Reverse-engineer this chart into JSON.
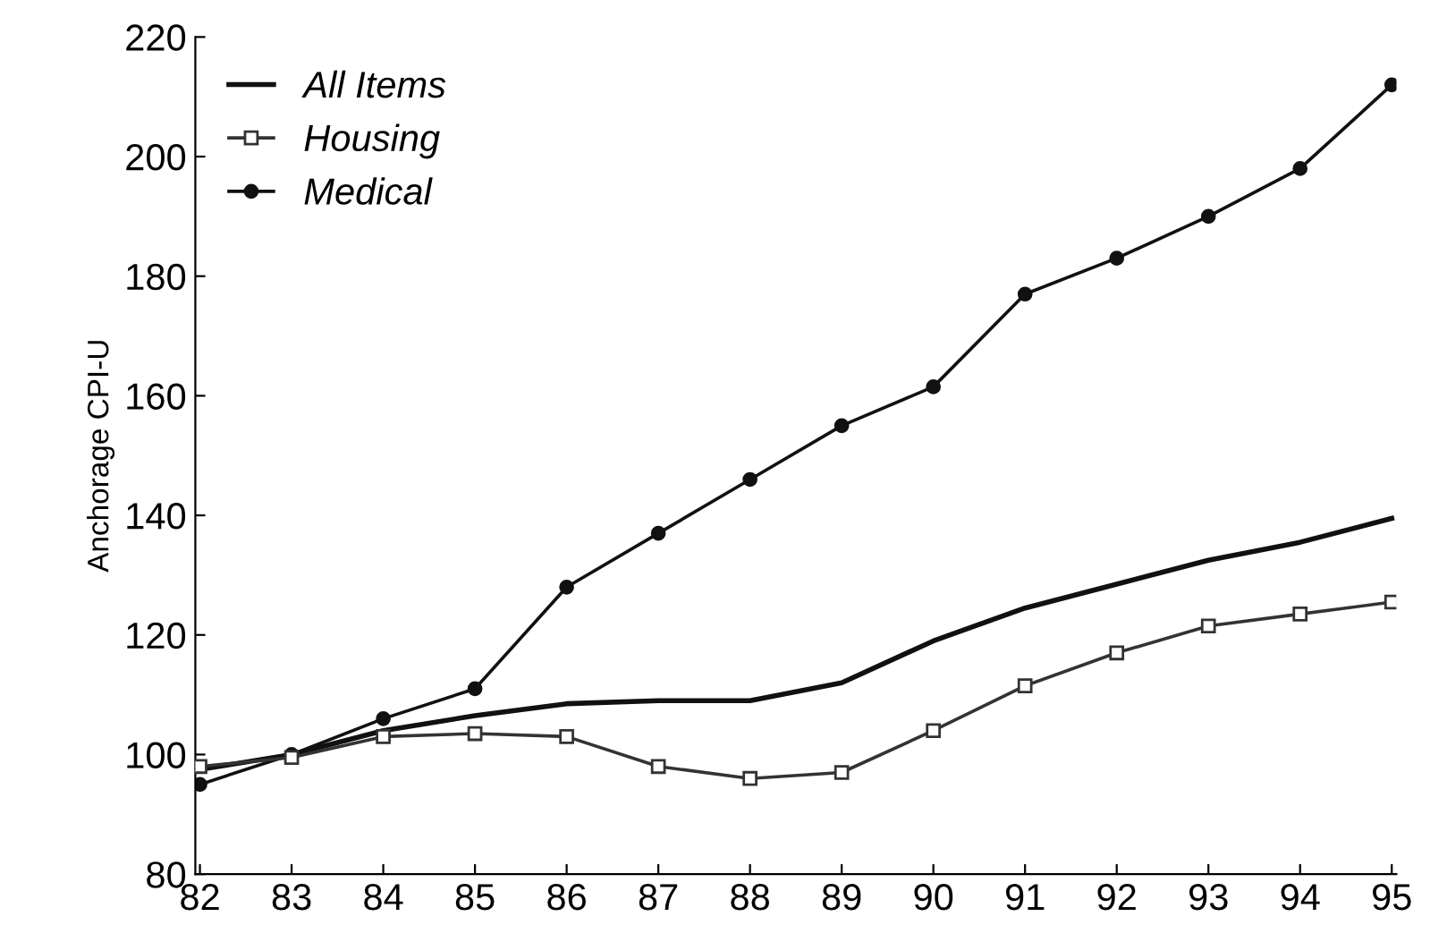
{
  "chart_data": {
    "type": "line",
    "ylabel": "Anchorage CPI-U",
    "categories": [
      "82",
      "83",
      "84",
      "85",
      "86",
      "87",
      "88",
      "89",
      "90",
      "91",
      "92",
      "93",
      "94",
      "95"
    ],
    "ylim": [
      80,
      220
    ],
    "yticks": [
      80,
      100,
      120,
      140,
      160,
      180,
      200,
      220
    ],
    "grid": false,
    "legend": "top left",
    "series": [
      {
        "name": "All Items",
        "color": "#111111",
        "marker": "none",
        "values": [
          97.5,
          100,
          104,
          106.5,
          108.5,
          109,
          109,
          112,
          119,
          124.5,
          128.5,
          132.5,
          135.5,
          139.5
        ]
      },
      {
        "name": "Housing",
        "color": "#333333",
        "marker": "square",
        "values": [
          98,
          99.5,
          103,
          103.5,
          103,
          98,
          96,
          97,
          104,
          111.5,
          117,
          121.5,
          123.5,
          125.5
        ]
      },
      {
        "name": "Medical",
        "color": "#111111",
        "marker": "circle",
        "values": [
          95,
          100,
          106,
          111,
          128,
          137,
          146,
          155,
          161.5,
          177,
          183,
          190,
          198,
          212
        ]
      }
    ]
  }
}
